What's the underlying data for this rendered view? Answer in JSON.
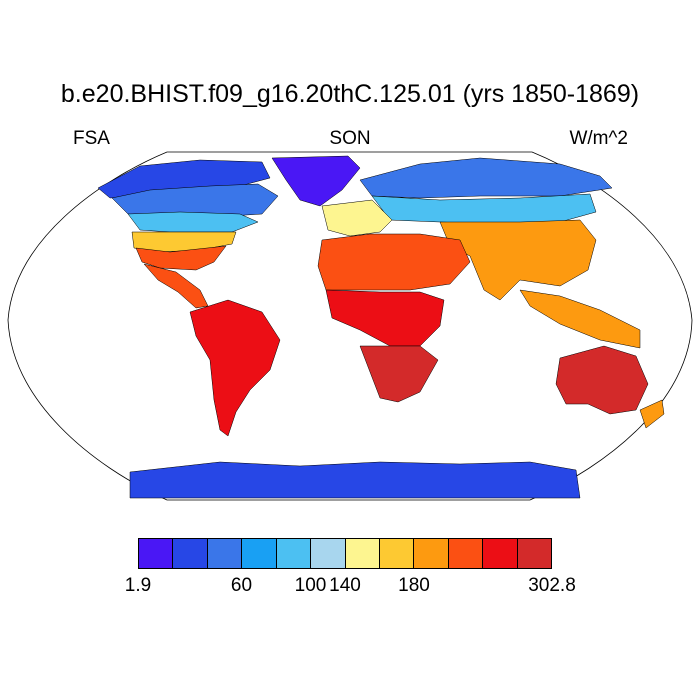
{
  "title": "b.e20.BHIST.f09_g16.20thC.125.01 (yrs 1850-1869)",
  "left_label": "FSA",
  "center_label": "SON",
  "right_label": "W/m^2",
  "map": {
    "projection": "Robinson",
    "ocean_color": "#ffffff",
    "coastline_color": "#000000",
    "regions": [
      {
        "name": "Greenland",
        "band": 0
      },
      {
        "name": "Arctic North America",
        "band": 1
      },
      {
        "name": "Canada",
        "band": 2
      },
      {
        "name": "Southern Canada",
        "band": 4
      },
      {
        "name": "Northern United States",
        "band": 7
      },
      {
        "name": "Southern United States",
        "band": 9
      },
      {
        "name": "Mexico and Central America",
        "band": 9
      },
      {
        "name": "South America",
        "band": 10
      },
      {
        "name": "Northern Eurasia",
        "band": 2
      },
      {
        "name": "Central Eurasia",
        "band": 4
      },
      {
        "name": "Europe",
        "band": 6
      },
      {
        "name": "Southern Asia",
        "band": 8
      },
      {
        "name": "North Africa and Middle East",
        "band": 9
      },
      {
        "name": "Sub-Saharan Africa",
        "band": 10
      },
      {
        "name": "Southern Africa",
        "band": 11
      },
      {
        "name": "Southeast Asia",
        "band": 8
      },
      {
        "name": "Australia",
        "band": 11
      },
      {
        "name": "New Zealand",
        "band": 8
      },
      {
        "name": "Antarctica",
        "band": 1
      }
    ]
  },
  "colorbar": {
    "colors": [
      "#4a17f5",
      "#2747e6",
      "#3a76e9",
      "#19a0f3",
      "#4cc0f2",
      "#a8d6ee",
      "#fdf590",
      "#fdc932",
      "#fd9a10",
      "#fb5013",
      "#ec0e15",
      "#d32a2a"
    ],
    "labels": [
      "1.9",
      "60",
      "100",
      "140",
      "180",
      "302.8"
    ],
    "label_boundaries": [
      0,
      3,
      4,
      5,
      6,
      8,
      9,
      12
    ]
  }
}
